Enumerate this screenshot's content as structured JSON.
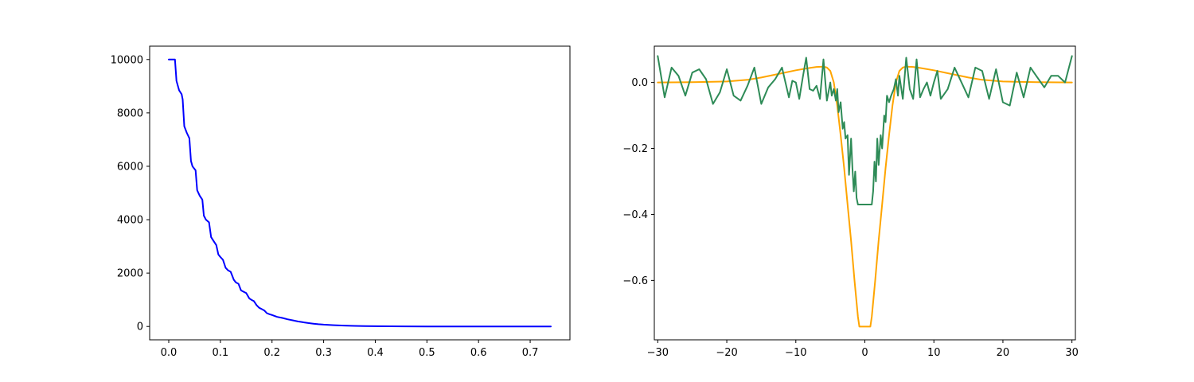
{
  "chart_data": [
    {
      "type": "line",
      "title": "",
      "xlabel": "",
      "ylabel": "",
      "xlim": [
        -0.037,
        0.777
      ],
      "ylim": [
        -500,
        10500
      ],
      "grid": false,
      "xticks": [
        0.0,
        0.1,
        0.2,
        0.3,
        0.4,
        0.5,
        0.6,
        0.7
      ],
      "xtick_labels": [
        "0.0",
        "0.1",
        "0.2",
        "0.3",
        "0.4",
        "0.5",
        "0.6",
        "0.7"
      ],
      "yticks": [
        0,
        2000,
        4000,
        6000,
        8000,
        10000
      ],
      "ytick_labels": [
        "0",
        "2000",
        "4000",
        "6000",
        "8000",
        "10000"
      ],
      "series": [
        {
          "color": "#0000ff",
          "x": [
            0.0,
            0.012,
            0.015,
            0.02,
            0.025,
            0.027,
            0.03,
            0.035,
            0.04,
            0.043,
            0.046,
            0.052,
            0.055,
            0.06,
            0.065,
            0.068,
            0.072,
            0.078,
            0.082,
            0.087,
            0.092,
            0.096,
            0.1,
            0.105,
            0.11,
            0.115,
            0.12,
            0.126,
            0.13,
            0.135,
            0.14,
            0.145,
            0.15,
            0.156,
            0.16,
            0.165,
            0.17,
            0.175,
            0.18,
            0.185,
            0.19,
            0.195,
            0.2,
            0.21,
            0.22,
            0.23,
            0.24,
            0.25,
            0.26,
            0.27,
            0.28,
            0.29,
            0.3,
            0.32,
            0.34,
            0.36,
            0.38,
            0.4,
            0.43,
            0.46,
            0.5,
            0.55,
            0.6,
            0.65,
            0.7,
            0.74
          ],
          "y": [
            10000,
            10000,
            9200,
            8850,
            8700,
            8500,
            7500,
            7250,
            7050,
            6200,
            6000,
            5850,
            5100,
            4900,
            4750,
            4150,
            4000,
            3900,
            3350,
            3200,
            3050,
            2700,
            2600,
            2500,
            2200,
            2100,
            2050,
            1750,
            1650,
            1600,
            1350,
            1300,
            1250,
            1050,
            1000,
            950,
            800,
            700,
            650,
            600,
            500,
            460,
            430,
            360,
            320,
            270,
            230,
            190,
            160,
            130,
            105,
            85,
            70,
            48,
            33,
            22,
            15,
            10,
            6,
            4,
            2,
            1,
            0,
            0,
            0,
            0
          ]
        }
      ]
    },
    {
      "type": "line",
      "title": "",
      "xlabel": "",
      "ylabel": "",
      "xlim": [
        -30.5,
        30.5
      ],
      "ylim": [
        -0.78,
        0.11
      ],
      "grid": false,
      "xticks": [
        -30,
        -20,
        -10,
        0,
        10,
        20,
        30
      ],
      "xtick_labels": [
        "−30",
        "−20",
        "−10",
        "0",
        "10",
        "20",
        "30"
      ],
      "yticks": [
        -0.6,
        -0.4,
        -0.2,
        0.0
      ],
      "ytick_labels": [
        "−0.6",
        "−0.4",
        "−0.2",
        "0.0"
      ],
      "series": [
        {
          "color": "#ffa500",
          "x": [
            -30,
            -25,
            -20,
            -17,
            -15,
            -12,
            -10,
            -8,
            -7,
            -6,
            -5.5,
            -5,
            -4.5,
            -4,
            -3.5,
            -3,
            -2.5,
            -2,
            -1.5,
            -1,
            -0.8,
            0,
            0.8,
            1,
            1.5,
            2,
            2.5,
            3,
            3.5,
            4,
            4.5,
            5,
            5.5,
            6,
            7,
            8,
            10,
            12,
            15,
            17,
            20,
            25,
            30
          ],
          "y": [
            0.0,
            0.001,
            0.003,
            0.008,
            0.015,
            0.028,
            0.037,
            0.044,
            0.047,
            0.048,
            0.045,
            0.035,
            0.0,
            -0.07,
            -0.16,
            -0.26,
            -0.37,
            -0.48,
            -0.6,
            -0.71,
            -0.74,
            -0.74,
            -0.74,
            -0.71,
            -0.6,
            -0.48,
            -0.37,
            -0.26,
            -0.16,
            -0.07,
            0.0,
            0.035,
            0.045,
            0.048,
            0.047,
            0.044,
            0.037,
            0.028,
            0.015,
            0.008,
            0.003,
            0.001,
            0.0
          ]
        },
        {
          "color": "#2e8b57",
          "x": [
            -30,
            -29,
            -28,
            -27,
            -26,
            -25,
            -24,
            -23,
            -22,
            -21,
            -20,
            -19,
            -18,
            -17,
            -16,
            -15,
            -14,
            -13,
            -12,
            -11,
            -10.5,
            -10,
            -9.5,
            -9,
            -8.5,
            -8,
            -7.5,
            -7,
            -6.5,
            -6,
            -5.5,
            -5,
            -4.8,
            -4.5,
            -4.2,
            -4,
            -3.8,
            -3.5,
            -3.2,
            -3,
            -2.8,
            -2.5,
            -2.3,
            -2,
            -1.8,
            -1.6,
            -1.4,
            -1.2,
            -1,
            0,
            1,
            1.2,
            1.4,
            1.6,
            1.8,
            2,
            2.3,
            2.5,
            2.8,
            3,
            3.2,
            3.5,
            3.8,
            4,
            4.2,
            4.5,
            4.8,
            5,
            5.5,
            6,
            6.5,
            7,
            7.5,
            8,
            8.5,
            9,
            9.5,
            10,
            10.5,
            11,
            12,
            13,
            14,
            15,
            16,
            17,
            18,
            19,
            20,
            21,
            22,
            23,
            24,
            25,
            26,
            27,
            28,
            29,
            30
          ],
          "y": [
            0.08,
            -0.045,
            0.045,
            0.02,
            -0.04,
            0.03,
            0.04,
            0.01,
            -0.065,
            -0.03,
            0.04,
            -0.04,
            -0.055,
            -0.01,
            0.045,
            -0.065,
            -0.015,
            0.01,
            0.045,
            -0.045,
            0.005,
            0.0,
            -0.05,
            0.015,
            0.075,
            -0.02,
            -0.025,
            -0.01,
            -0.05,
            0.07,
            -0.055,
            0.0,
            -0.04,
            -0.02,
            -0.055,
            -0.02,
            -0.09,
            -0.06,
            -0.14,
            -0.12,
            -0.17,
            -0.16,
            -0.28,
            -0.17,
            -0.26,
            -0.33,
            -0.27,
            -0.35,
            -0.37,
            -0.37,
            -0.37,
            -0.33,
            -0.24,
            -0.3,
            -0.17,
            -0.25,
            -0.16,
            -0.2,
            -0.1,
            -0.12,
            -0.04,
            -0.06,
            -0.04,
            -0.03,
            -0.02,
            0.01,
            -0.04,
            0.02,
            -0.05,
            0.075,
            -0.02,
            -0.05,
            0.07,
            -0.045,
            -0.02,
            0.0,
            -0.04,
            0.0,
            0.035,
            -0.05,
            -0.02,
            0.045,
            0.0,
            -0.045,
            0.045,
            0.035,
            -0.05,
            0.04,
            -0.06,
            -0.07,
            0.03,
            -0.045,
            0.045,
            0.015,
            -0.015,
            0.02,
            0.02,
            0.0,
            0.08
          ]
        }
      ]
    }
  ]
}
